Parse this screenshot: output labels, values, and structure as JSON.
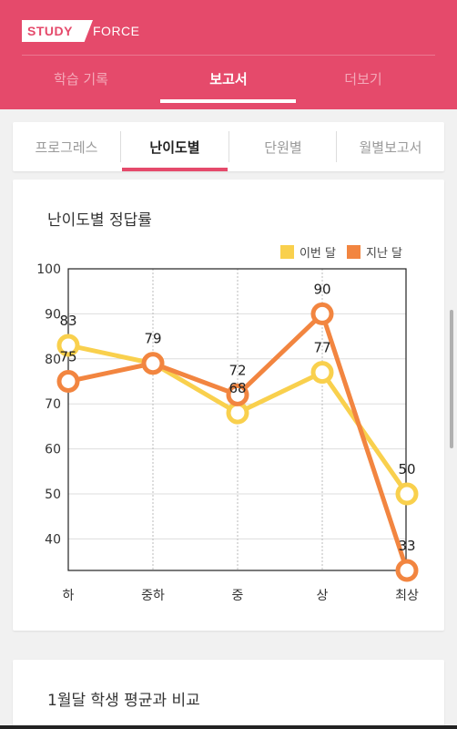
{
  "header": {
    "logo_left": "STUDY",
    "logo_right": "FORCE",
    "tabs": [
      {
        "label": "학습 기록",
        "active": false
      },
      {
        "label": "보고서",
        "active": true
      },
      {
        "label": "더보기",
        "active": false
      }
    ]
  },
  "subtabs": [
    {
      "label": "프로그레스",
      "active": false
    },
    {
      "label": "난이도별",
      "active": true
    },
    {
      "label": "단원별",
      "active": false
    },
    {
      "label": "월별보고서",
      "active": false
    }
  ],
  "card1": {
    "title": "난이도별 정답률"
  },
  "card2": {
    "title": "1월달 학생 평균과 비교"
  },
  "colors": {
    "accent": "#e54a6b",
    "this_month": "#f9d04d",
    "last_month": "#f28540"
  },
  "chart_data": {
    "type": "line",
    "categories": [
      "하",
      "중하",
      "중",
      "상",
      "최상"
    ],
    "y_ticks": [
      "100",
      "90",
      "80",
      "70",
      "60",
      "50",
      "40"
    ],
    "ylim": [
      33,
      100
    ],
    "grid": true,
    "legend_position": "top-right",
    "series": [
      {
        "name": "이번 달",
        "values": [
          83,
          79,
          68,
          77,
          50
        ],
        "labels": [
          "83",
          "79",
          "68",
          "77",
          "50"
        ],
        "color": "#f9d04d"
      },
      {
        "name": "지난 달",
        "values": [
          75,
          79,
          72,
          90,
          33
        ],
        "labels": [
          "75",
          "",
          "72",
          "90",
          "33"
        ],
        "color": "#f28540"
      }
    ]
  }
}
